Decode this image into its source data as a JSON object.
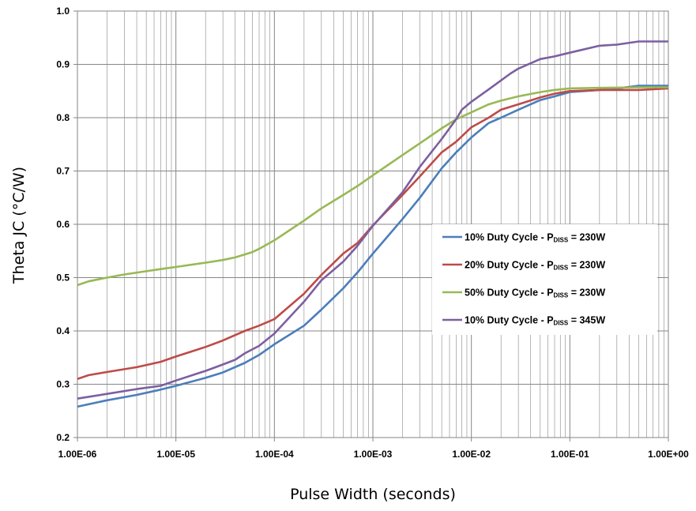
{
  "chart_data": {
    "type": "line",
    "xscale": "log",
    "xlim": [
      1e-06,
      1
    ],
    "ylim": [
      0.2,
      1.0
    ],
    "grid": true,
    "legend_placement": "center-right",
    "xlabel": "Pulse Width (seconds)",
    "ylabel": "Theta JC (°C/W)",
    "x_tick_labels": [
      "1.00E-06",
      "1.00E-05",
      "1.00E-04",
      "1.00E-03",
      "1.00E-02",
      "1.00E-01",
      "1.00E+00"
    ],
    "y_tick_labels": [
      "0.2",
      "0.3",
      "0.4",
      "0.5",
      "0.6",
      "0.7",
      "0.8",
      "0.9",
      "1.0"
    ],
    "series": [
      {
        "name": "10% Duty Cycle - P",
        "name_sub": "DISS",
        "name_suffix": " = 230W",
        "color": "#4a7ebb",
        "points": [
          [
            1e-06,
            0.258
          ],
          [
            2e-06,
            0.27
          ],
          [
            4e-06,
            0.28
          ],
          [
            7e-06,
            0.29
          ],
          [
            1e-05,
            0.297
          ],
          [
            2e-05,
            0.312
          ],
          [
            3e-05,
            0.322
          ],
          [
            5e-05,
            0.34
          ],
          [
            7e-05,
            0.355
          ],
          [
            0.0001,
            0.375
          ],
          [
            0.0002,
            0.41
          ],
          [
            0.0003,
            0.44
          ],
          [
            0.0005,
            0.48
          ],
          [
            0.0007,
            0.51
          ],
          [
            0.001,
            0.545
          ],
          [
            0.002,
            0.61
          ],
          [
            0.003,
            0.65
          ],
          [
            0.005,
            0.705
          ],
          [
            0.007,
            0.735
          ],
          [
            0.01,
            0.763
          ],
          [
            0.015,
            0.79
          ],
          [
            0.02,
            0.8
          ],
          [
            0.03,
            0.815
          ],
          [
            0.05,
            0.833
          ],
          [
            0.07,
            0.84
          ],
          [
            0.1,
            0.848
          ],
          [
            0.2,
            0.852
          ],
          [
            0.3,
            0.855
          ],
          [
            0.5,
            0.86
          ],
          [
            1,
            0.86
          ]
        ]
      },
      {
        "name": "20% Duty Cycle - P",
        "name_sub": "DISS",
        "name_suffix": " = 230W",
        "color": "#be4b48",
        "points": [
          [
            1e-06,
            0.31
          ],
          [
            1.3e-06,
            0.317
          ],
          [
            2e-06,
            0.323
          ],
          [
            4e-06,
            0.332
          ],
          [
            7e-06,
            0.342
          ],
          [
            1e-05,
            0.352
          ],
          [
            2e-05,
            0.37
          ],
          [
            3e-05,
            0.382
          ],
          [
            5e-05,
            0.4
          ],
          [
            7e-05,
            0.41
          ],
          [
            0.0001,
            0.422
          ],
          [
            0.0002,
            0.47
          ],
          [
            0.0003,
            0.505
          ],
          [
            0.0005,
            0.545
          ],
          [
            0.0007,
            0.565
          ],
          [
            0.001,
            0.598
          ],
          [
            0.002,
            0.655
          ],
          [
            0.003,
            0.69
          ],
          [
            0.005,
            0.735
          ],
          [
            0.007,
            0.755
          ],
          [
            0.01,
            0.782
          ],
          [
            0.015,
            0.8
          ],
          [
            0.02,
            0.815
          ],
          [
            0.03,
            0.825
          ],
          [
            0.05,
            0.838
          ],
          [
            0.07,
            0.845
          ],
          [
            0.1,
            0.85
          ],
          [
            0.2,
            0.852
          ],
          [
            0.5,
            0.852
          ],
          [
            1,
            0.855
          ]
        ]
      },
      {
        "name": "50% Duty Cycle - P",
        "name_sub": "DISS",
        "name_suffix": " = 230W",
        "color": "#98b954",
        "points": [
          [
            1e-06,
            0.486
          ],
          [
            1.3e-06,
            0.493
          ],
          [
            2e-06,
            0.5
          ],
          [
            3e-06,
            0.506
          ],
          [
            5e-06,
            0.512
          ],
          [
            7e-06,
            0.516
          ],
          [
            1e-05,
            0.52
          ],
          [
            2e-05,
            0.528
          ],
          [
            3e-05,
            0.533
          ],
          [
            4e-05,
            0.538
          ],
          [
            6e-05,
            0.548
          ],
          [
            7e-05,
            0.554
          ],
          [
            0.0001,
            0.57
          ],
          [
            0.0002,
            0.607
          ],
          [
            0.0003,
            0.63
          ],
          [
            0.0005,
            0.655
          ],
          [
            0.0007,
            0.672
          ],
          [
            0.001,
            0.692
          ],
          [
            0.002,
            0.73
          ],
          [
            0.003,
            0.752
          ],
          [
            0.005,
            0.78
          ],
          [
            0.007,
            0.797
          ],
          [
            0.01,
            0.81
          ],
          [
            0.015,
            0.825
          ],
          [
            0.02,
            0.832
          ],
          [
            0.03,
            0.84
          ],
          [
            0.05,
            0.848
          ],
          [
            0.07,
            0.852
          ],
          [
            0.1,
            0.855
          ],
          [
            0.2,
            0.856
          ],
          [
            0.5,
            0.857
          ],
          [
            1,
            0.857
          ]
        ]
      },
      {
        "name": "10% Duty Cycle - P",
        "name_sub": "DISS",
        "name_suffix": " = 345W",
        "color": "#7d5fa0",
        "points": [
          [
            1e-06,
            0.273
          ],
          [
            2e-06,
            0.282
          ],
          [
            4e-06,
            0.291
          ],
          [
            7e-06,
            0.297
          ],
          [
            1e-05,
            0.307
          ],
          [
            2e-05,
            0.325
          ],
          [
            3e-05,
            0.337
          ],
          [
            4e-05,
            0.346
          ],
          [
            5e-05,
            0.358
          ],
          [
            7e-05,
            0.372
          ],
          [
            0.0001,
            0.395
          ],
          [
            0.0002,
            0.455
          ],
          [
            0.0003,
            0.495
          ],
          [
            0.0005,
            0.53
          ],
          [
            0.0007,
            0.56
          ],
          [
            0.001,
            0.597
          ],
          [
            0.002,
            0.66
          ],
          [
            0.003,
            0.708
          ],
          [
            0.005,
            0.76
          ],
          [
            0.007,
            0.797
          ],
          [
            0.008,
            0.815
          ],
          [
            0.01,
            0.83
          ],
          [
            0.015,
            0.853
          ],
          [
            0.02,
            0.87
          ],
          [
            0.025,
            0.883
          ],
          [
            0.03,
            0.892
          ],
          [
            0.05,
            0.91
          ],
          [
            0.07,
            0.915
          ],
          [
            0.1,
            0.922
          ],
          [
            0.2,
            0.935
          ],
          [
            0.3,
            0.937
          ],
          [
            0.5,
            0.943
          ],
          [
            1,
            0.943
          ]
        ]
      }
    ]
  }
}
